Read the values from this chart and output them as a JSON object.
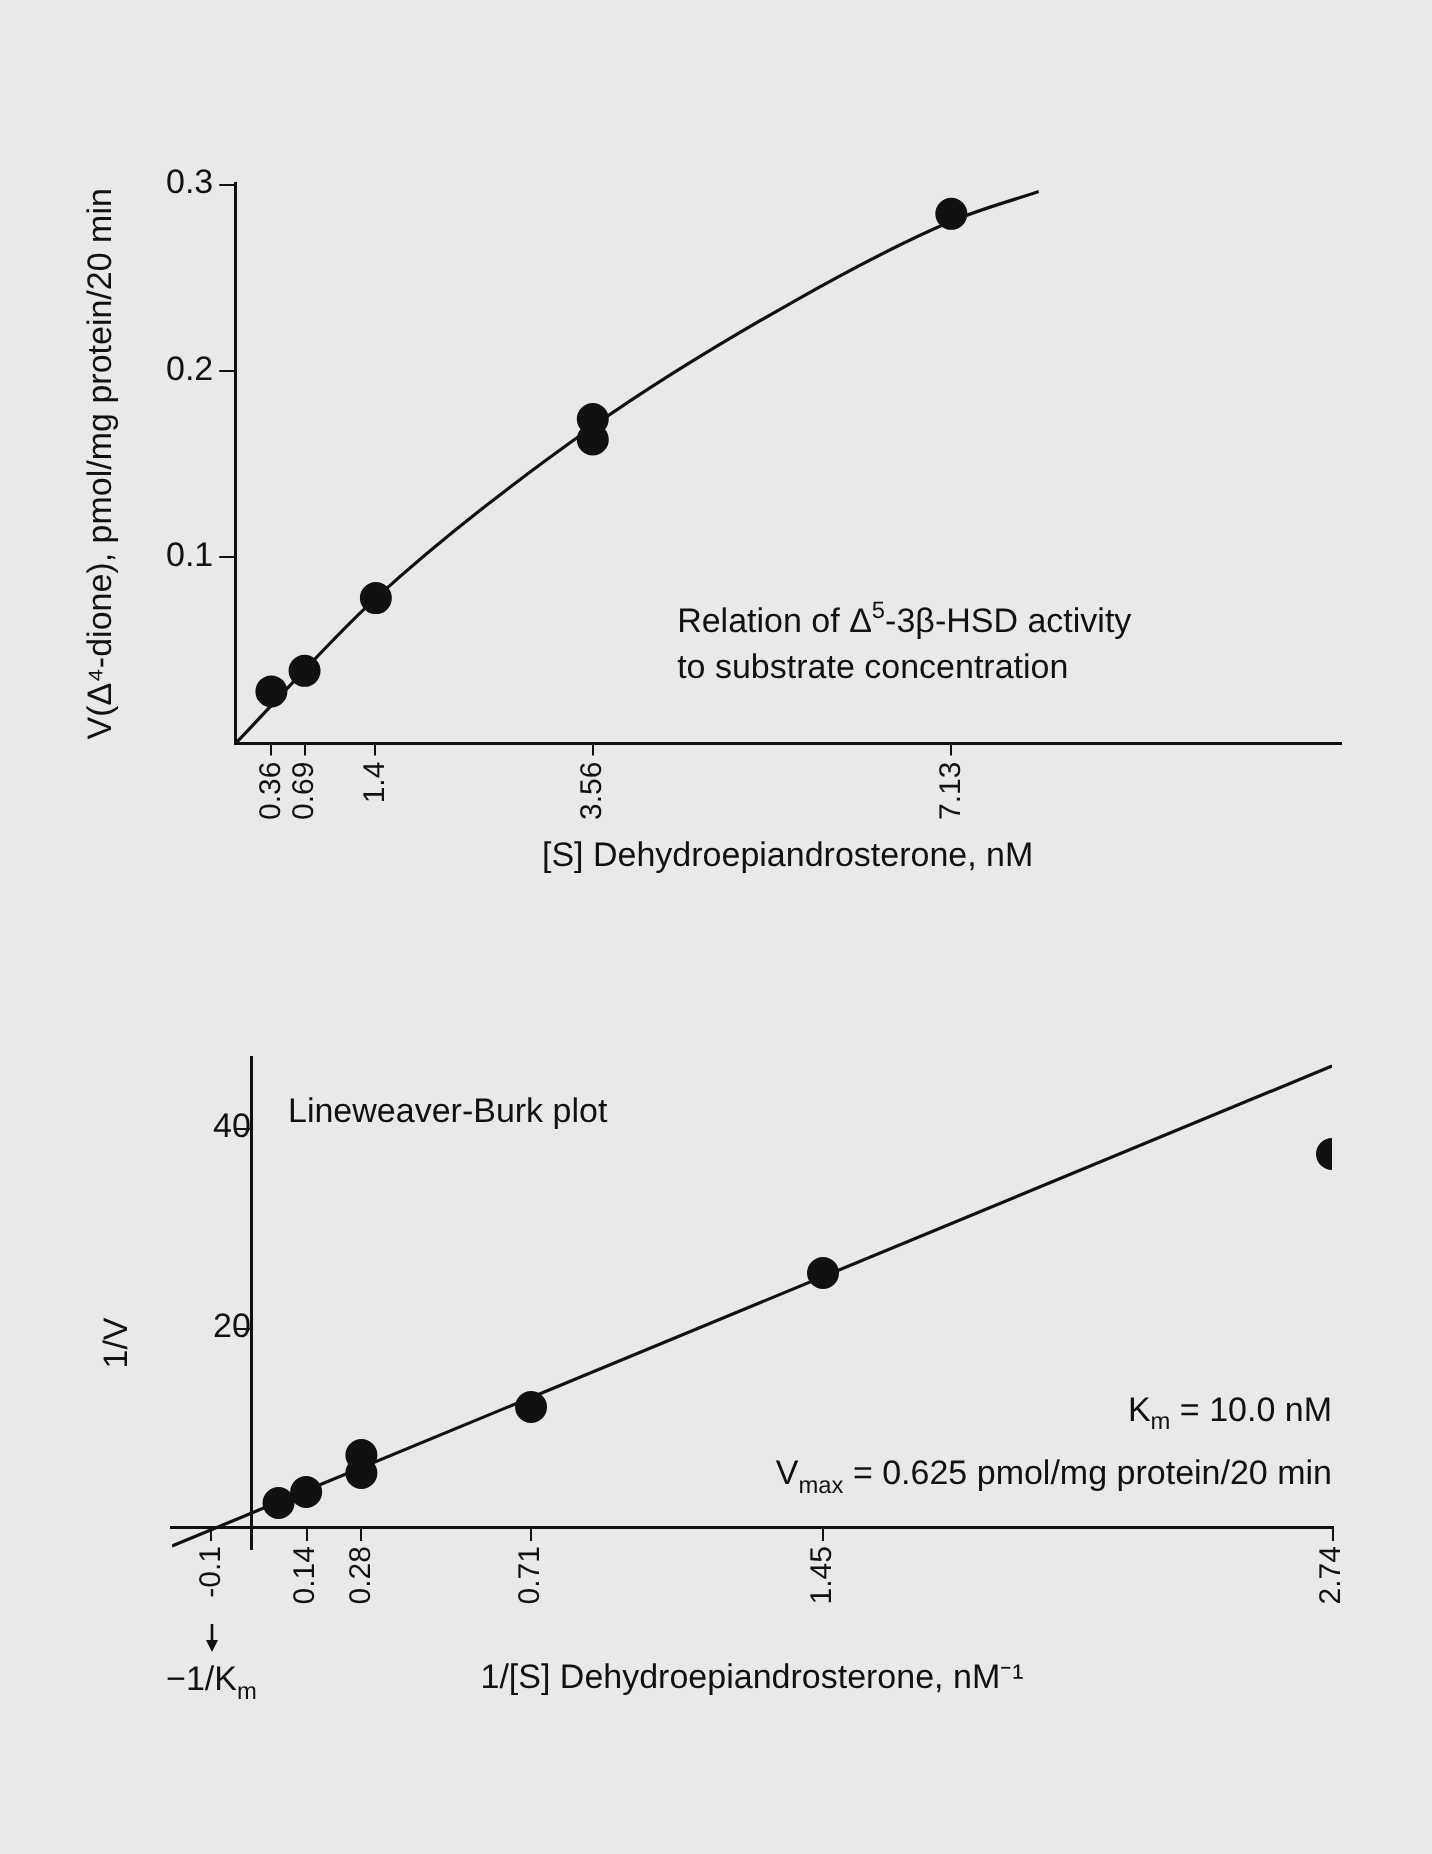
{
  "chart_data": [
    {
      "type": "scatter",
      "xlabel": "[S] Dehydroepiandrosterone, nM",
      "ylabel": "V(Δ⁴-dione), pmol/mg protein/20 min",
      "annotations": [
        "Relation of Δ$^{5}$-3β-HSD activity to substrate concentration"
      ],
      "series": [
        {
          "type": "scatter",
          "color": "#111111",
          "marker": "circle",
          "x": [
            0.36,
            0.69,
            1.4,
            3.56,
            3.56,
            7.13
          ],
          "values": [
            0.028,
            0.039,
            0.078,
            0.174,
            0.163,
            0.284
          ]
        },
        {
          "type": "line",
          "color": "#111111",
          "marker": "none",
          "x": [
            0,
            1.4,
            3.56,
            5.56,
            7.13,
            8.0
          ],
          "values": [
            0,
            0.078,
            0.17,
            0.237,
            0.28,
            0.296
          ]
        }
      ],
      "xlim": [
        0,
        11
      ],
      "xticks": [
        0.36,
        0.69,
        1.4,
        3.56,
        7.13
      ],
      "ylim": [
        0,
        0.3
      ],
      "yticks": [
        0.1,
        0.2,
        0.3
      ],
      "grid": false,
      "legend": false
    },
    {
      "type": "scatter",
      "xlabel": "1/[S] Dehydroepiandrosterone, nM⁻¹",
      "ylabel": "1/V",
      "annotations": [
        "Lineweaver-Burk plot",
        "K$_{m}$ = 10.0 nM",
        "V$_{max}$ = 0.625 pmol/mg protein/20 min",
        "−1/K$_{m}$"
      ],
      "series": [
        {
          "type": "scatter",
          "color": "#111111",
          "marker": "circle",
          "x": [
            0.07,
            0.14,
            0.28,
            0.28,
            0.71,
            1.45,
            2.74
          ],
          "values": [
            2.5,
            3.6,
            7.3,
            5.5,
            12.1,
            25.5,
            37.4
          ]
        },
        {
          "type": "line",
          "color": "#111111",
          "marker": "none",
          "x": [
            -0.2,
            2.74
          ],
          "values": [
            -1.8,
            46.2
          ]
        }
      ],
      "xlim": [
        -0.2,
        2.74
      ],
      "xticks": [
        -0.1,
        0.14,
        0.28,
        0.71,
        1.45,
        2.74
      ],
      "ylim": [
        -2,
        47
      ],
      "yticks": [
        20,
        40
      ],
      "grid": false,
      "legend": false
    }
  ]
}
